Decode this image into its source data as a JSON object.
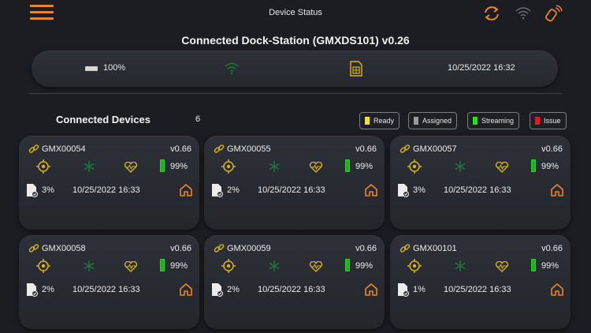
{
  "header": {
    "title": "Device Status",
    "menu_icon": "hamburger-menu-icon",
    "accent_color": "#e8862e"
  },
  "dock": {
    "title": "Connected Dock-Station (GMXDS101) v0.26",
    "battery": "100%",
    "datetime": "10/25/2022 16:32"
  },
  "devices_section": {
    "title": "Connected Devices",
    "count": "6"
  },
  "legend": [
    {
      "label": "Ready",
      "color": "#ffe600"
    },
    {
      "label": "Assigned",
      "color": "#9a9a9a"
    },
    {
      "label": "Streaming",
      "color": "#22e022"
    },
    {
      "label": "Issue",
      "color": "#e81b1b"
    }
  ],
  "devices": [
    {
      "id": "GMX00054",
      "version": "v0.66",
      "battery": "99%",
      "storage": "3%",
      "datetime": "10/25/2022 16:33"
    },
    {
      "id": "GMX00055",
      "version": "v0.66",
      "battery": "99%",
      "storage": "2%",
      "datetime": "10/25/2022 16:33"
    },
    {
      "id": "GMX00057",
      "version": "v0.66",
      "battery": "99%",
      "storage": "3%",
      "datetime": "10/25/2022 16:33"
    },
    {
      "id": "GMX00058",
      "version": "v0.66",
      "battery": "99%",
      "storage": "2%",
      "datetime": "10/25/2022 16:33"
    },
    {
      "id": "GMX00059",
      "version": "v0.66",
      "battery": "99%",
      "storage": "2%",
      "datetime": "10/25/2022 16:33"
    },
    {
      "id": "GMX00101",
      "version": "v0.66",
      "battery": "99%",
      "storage": "1%",
      "datetime": "10/25/2022 16:33"
    }
  ]
}
